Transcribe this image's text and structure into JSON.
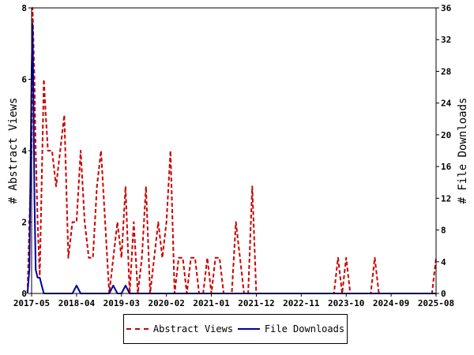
{
  "chart_data": {
    "type": "line",
    "x_ticks": [
      "2017-05",
      "2018-04",
      "2019-03",
      "2020-02",
      "2021-01",
      "2021-12",
      "2022-11",
      "2023-10",
      "2024-09",
      "2025-08"
    ],
    "y_left": {
      "label": "# Abstract Views",
      "ticks": [
        "0",
        "2",
        "4",
        "6",
        "8"
      ],
      "range": [
        0,
        8
      ]
    },
    "y_right": {
      "label": "# File Downloads",
      "ticks": [
        "0",
        "4",
        "8",
        "12",
        "16",
        "20",
        "24",
        "28",
        "32",
        "36"
      ],
      "range": [
        0,
        36
      ]
    },
    "grid": false,
    "legend_position": "bottom",
    "series": [
      {
        "name": "Abstract Views",
        "axis": "left",
        "color": "#cc0000",
        "style": "dashed",
        "points": [
          [
            "2017-04-01",
            0
          ],
          [
            "2017-04-15",
            2
          ],
          [
            "2017-05-01",
            4
          ],
          [
            "2017-05-08",
            8
          ],
          [
            "2017-05-15",
            7
          ],
          [
            "2017-05-22",
            6
          ],
          [
            "2017-06-01",
            4
          ],
          [
            "2017-06-15",
            2
          ],
          [
            "2017-07-01",
            0.5
          ],
          [
            "2017-08-01",
            6
          ],
          [
            "2017-08-15",
            5
          ],
          [
            "2017-09-01",
            4
          ],
          [
            "2017-10-01",
            4
          ],
          [
            "2017-11-01",
            3
          ],
          [
            "2017-12-01",
            4
          ],
          [
            "2018-01-01",
            5
          ],
          [
            "2018-02-01",
            1
          ],
          [
            "2018-03-01",
            2
          ],
          [
            "2018-04-01",
            2
          ],
          [
            "2018-05-01",
            4
          ],
          [
            "2018-06-01",
            2
          ],
          [
            "2018-07-01",
            1
          ],
          [
            "2018-08-01",
            1
          ],
          [
            "2018-09-01",
            3
          ],
          [
            "2018-10-01",
            4
          ],
          [
            "2018-11-01",
            2
          ],
          [
            "2018-12-01",
            0
          ],
          [
            "2019-01-01",
            1
          ],
          [
            "2019-02-01",
            2
          ],
          [
            "2019-03-01",
            1
          ],
          [
            "2019-04-01",
            3
          ],
          [
            "2019-05-01",
            0
          ],
          [
            "2019-06-01",
            2
          ],
          [
            "2019-07-01",
            0
          ],
          [
            "2019-08-01",
            1
          ],
          [
            "2019-09-01",
            3
          ],
          [
            "2019-10-01",
            0
          ],
          [
            "2019-11-01",
            1
          ],
          [
            "2019-12-01",
            2
          ],
          [
            "2020-01-01",
            1
          ],
          [
            "2020-02-01",
            2
          ],
          [
            "2020-03-01",
            4
          ],
          [
            "2020-04-01",
            0
          ],
          [
            "2020-05-01",
            1
          ],
          [
            "2020-06-01",
            1
          ],
          [
            "2020-07-01",
            0
          ],
          [
            "2020-08-01",
            1
          ],
          [
            "2020-09-01",
            1
          ],
          [
            "2020-10-01",
            0
          ],
          [
            "2020-11-01",
            0
          ],
          [
            "2020-12-01",
            1
          ],
          [
            "2021-01-01",
            0
          ],
          [
            "2021-02-01",
            1
          ],
          [
            "2021-03-01",
            1
          ],
          [
            "2021-04-01",
            0
          ],
          [
            "2021-05-01",
            0
          ],
          [
            "2021-06-01",
            0
          ],
          [
            "2021-07-01",
            2
          ],
          [
            "2021-08-01",
            1
          ],
          [
            "2021-09-01",
            0
          ],
          [
            "2021-10-01",
            0
          ],
          [
            "2021-11-01",
            3
          ],
          [
            "2021-12-01",
            0
          ],
          [
            "2022-01-01",
            0
          ],
          [
            "2023-07-01",
            0
          ],
          [
            "2023-08-01",
            1
          ],
          [
            "2023-09-01",
            0
          ],
          [
            "2023-10-01",
            1
          ],
          [
            "2023-11-01",
            0
          ],
          [
            "2024-04-01",
            0
          ],
          [
            "2024-05-01",
            1
          ],
          [
            "2024-06-01",
            0
          ],
          [
            "2025-07-01",
            0
          ],
          [
            "2025-08-01",
            1
          ]
        ]
      },
      {
        "name": "File Downloads",
        "axis": "right",
        "color": "#000099",
        "style": "solid",
        "points": [
          [
            "2017-04-01",
            0
          ],
          [
            "2017-04-15",
            3
          ],
          [
            "2017-05-01",
            28
          ],
          [
            "2017-05-08",
            34
          ],
          [
            "2017-05-15",
            24
          ],
          [
            "2017-05-22",
            12
          ],
          [
            "2017-06-01",
            3
          ],
          [
            "2017-06-15",
            2
          ],
          [
            "2017-07-01",
            2
          ],
          [
            "2017-07-15",
            1
          ],
          [
            "2017-08-01",
            0
          ],
          [
            "2018-03-01",
            0
          ],
          [
            "2018-04-01",
            1
          ],
          [
            "2018-05-01",
            0
          ],
          [
            "2018-12-01",
            0
          ],
          [
            "2019-01-01",
            1
          ],
          [
            "2019-02-01",
            0
          ],
          [
            "2019-03-01",
            0
          ],
          [
            "2019-04-01",
            1
          ],
          [
            "2019-05-01",
            0
          ],
          [
            "2025-08-01",
            0
          ]
        ]
      }
    ]
  },
  "legend": {
    "abstract_views_label": "Abstract Views",
    "file_downloads_label": "File Downloads"
  }
}
